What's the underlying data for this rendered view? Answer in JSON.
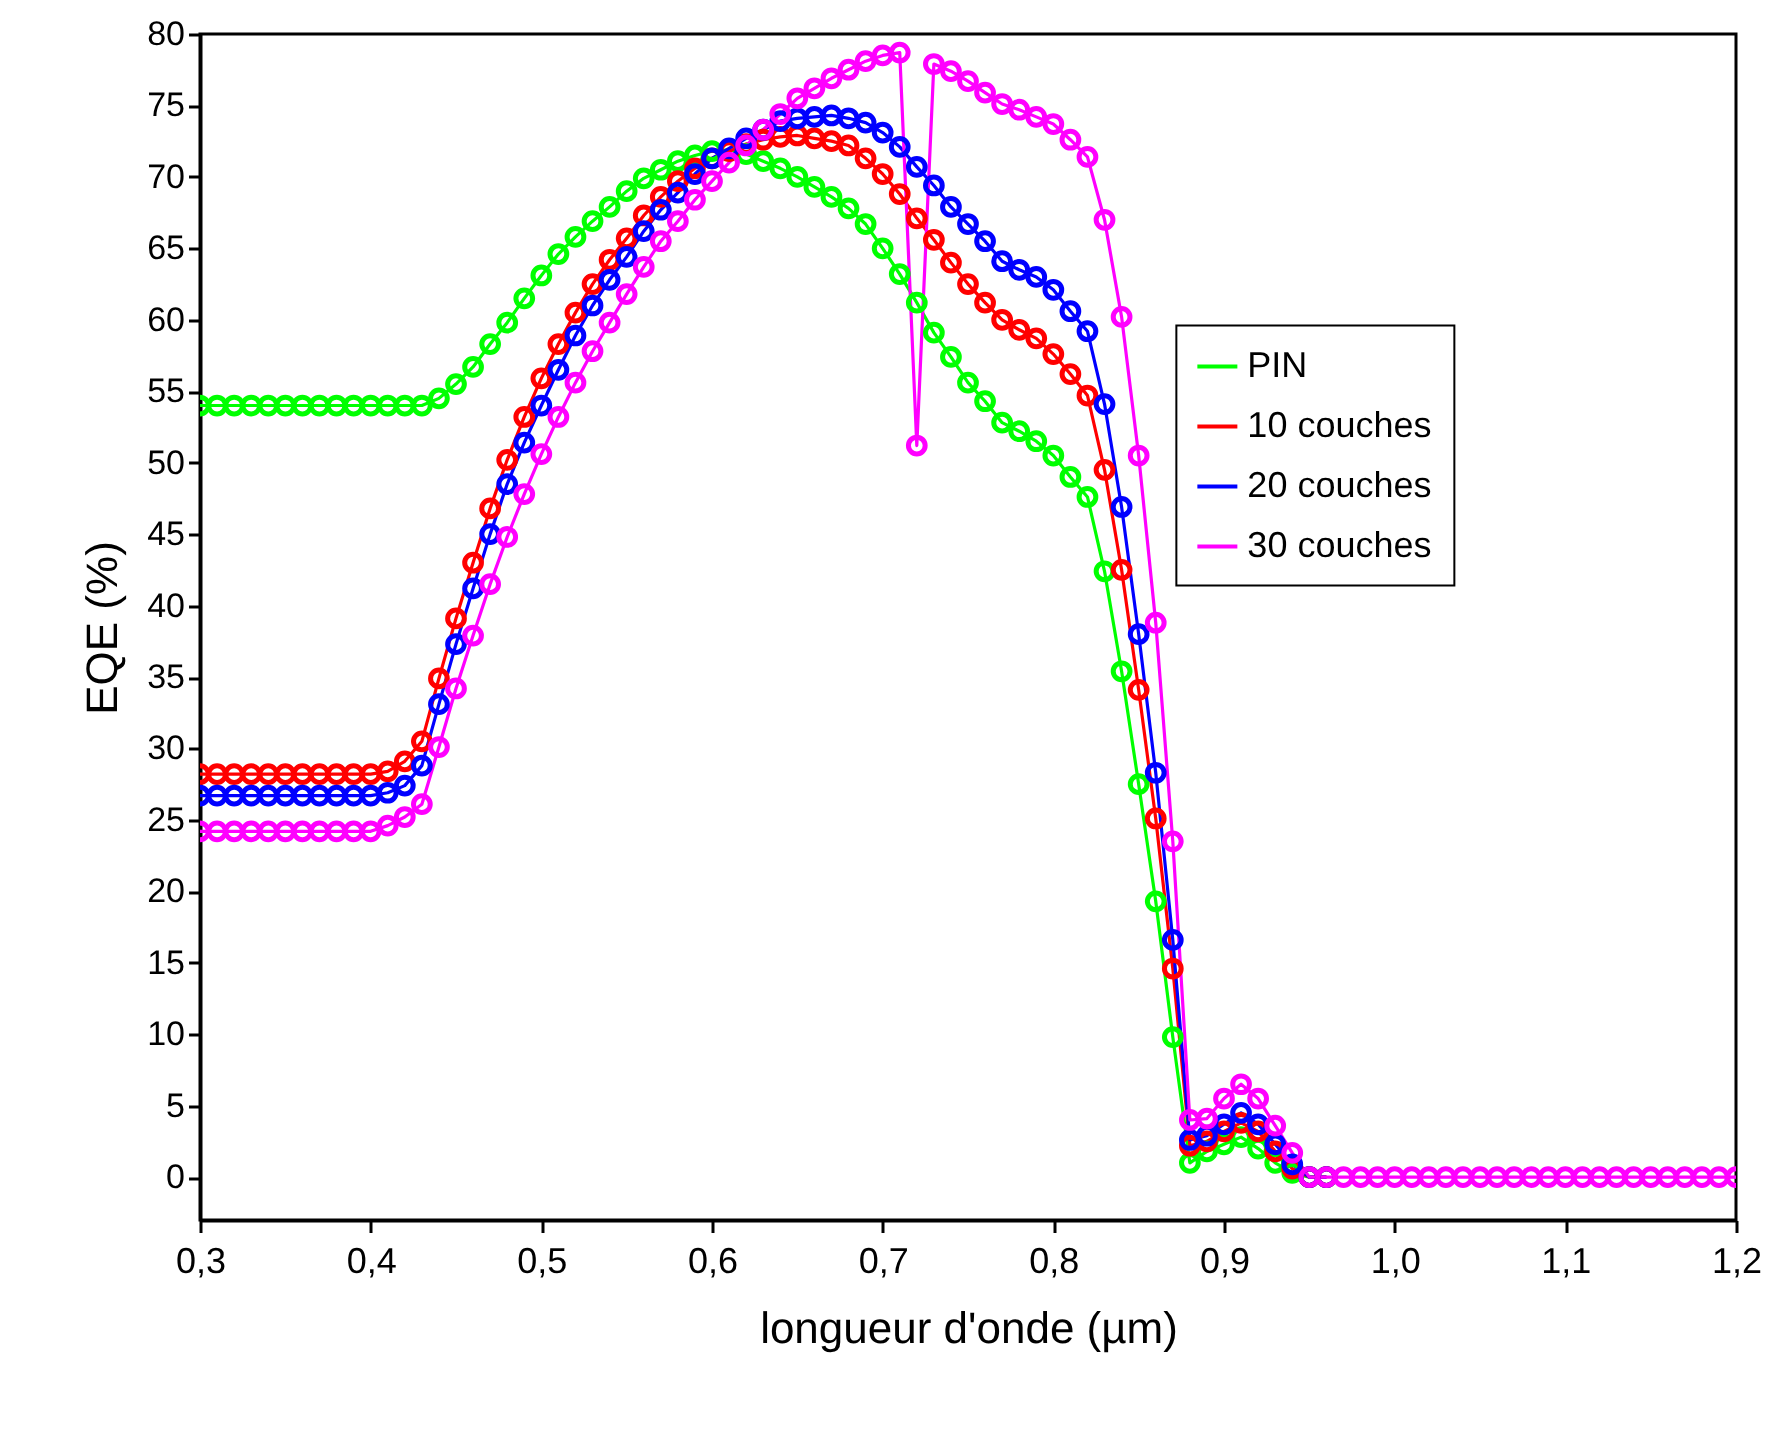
{
  "chart_data": {
    "type": "line",
    "xlabel": "longueur d'onde (µm)",
    "ylabel": "EQE (%)",
    "x": [
      0.3,
      0.31,
      0.32,
      0.33,
      0.34,
      0.35,
      0.36,
      0.37,
      0.38,
      0.39,
      0.4,
      0.41,
      0.42,
      0.43,
      0.44,
      0.45,
      0.46,
      0.47,
      0.48,
      0.49,
      0.5,
      0.51,
      0.52,
      0.53,
      0.54,
      0.55,
      0.56,
      0.57,
      0.58,
      0.59,
      0.6,
      0.61,
      0.62,
      0.63,
      0.64,
      0.65,
      0.66,
      0.67,
      0.68,
      0.69,
      0.7,
      0.71,
      0.72,
      0.73,
      0.74,
      0.75,
      0.76,
      0.77,
      0.78,
      0.79,
      0.8,
      0.81,
      0.82,
      0.83,
      0.84,
      0.85,
      0.86,
      0.87,
      0.88,
      0.89,
      0.9,
      0.91,
      0.92,
      0.93,
      0.94,
      0.95,
      0.96,
      0.97,
      0.98,
      0.99,
      1.0,
      1.01,
      1.02,
      1.03,
      1.04,
      1.05,
      1.06,
      1.07,
      1.08,
      1.09,
      1.1,
      1.11,
      1.12,
      1.13,
      1.14,
      1.15,
      1.16,
      1.17,
      1.18,
      1.19,
      1.2
    ],
    "series": [
      {
        "name": "PIN",
        "color": "#00ff00",
        "values": [
          54,
          54,
          54,
          54,
          54,
          54,
          54,
          54,
          54,
          54,
          54,
          54,
          54,
          54,
          54.5,
          55.5,
          56.7,
          58.3,
          59.8,
          61.5,
          63.1,
          64.6,
          65.8,
          66.9,
          67.9,
          69,
          69.9,
          70.5,
          71.1,
          71.5,
          71.8,
          71.9,
          71.6,
          71.1,
          70.6,
          70,
          69.3,
          68.6,
          67.8,
          66.7,
          65,
          63.2,
          61.2,
          59.1,
          57.4,
          55.6,
          54.3,
          52.8,
          52.2,
          51.5,
          50.5,
          49,
          47.6,
          42.4,
          35.4,
          27.5,
          19.3,
          9.8,
          1,
          1.8,
          2.3,
          2.8,
          2,
          1,
          0.3,
          0,
          0,
          null,
          null,
          null,
          null,
          null,
          null,
          null,
          null,
          null,
          null,
          null,
          null,
          null,
          null,
          null,
          null,
          null,
          null,
          null,
          null,
          null,
          null,
          null,
          null
        ]
      },
      {
        "name": "10 couches",
        "color": "#ff0000",
        "values": [
          28.2,
          28.2,
          28.2,
          28.2,
          28.2,
          28.2,
          28.2,
          28.2,
          28.2,
          28.2,
          28.2,
          28.4,
          29.1,
          30.5,
          34.9,
          39.1,
          43,
          46.8,
          50.2,
          53.2,
          55.9,
          58.3,
          60.5,
          62.5,
          64.2,
          65.7,
          67.3,
          68.6,
          69.7,
          70.6,
          71.3,
          71.8,
          72.3,
          72.6,
          72.8,
          72.9,
          72.7,
          72.5,
          72.2,
          71.3,
          70.2,
          68.8,
          67.1,
          65.6,
          64,
          62.5,
          61.2,
          60,
          59.3,
          58.7,
          57.6,
          56.2,
          54.7,
          49.5,
          42.5,
          34.1,
          25.1,
          14.6,
          2.2,
          2.5,
          3.2,
          3.8,
          3.2,
          1.8,
          0.6,
          0,
          0,
          null,
          null,
          null,
          null,
          null,
          null,
          null,
          null,
          null,
          null,
          null,
          null,
          null,
          null,
          null,
          null,
          null,
          null,
          null,
          null,
          null,
          null,
          null,
          null
        ]
      },
      {
        "name": "20 couches",
        "color": "#0000ff",
        "values": [
          26.7,
          26.7,
          26.7,
          26.7,
          26.7,
          26.7,
          26.7,
          26.7,
          26.7,
          26.7,
          26.7,
          26.9,
          27.4,
          28.8,
          33.1,
          37.3,
          41.2,
          45,
          48.5,
          51.4,
          54,
          56.5,
          58.9,
          61,
          62.8,
          64.4,
          66.2,
          67.7,
          68.9,
          70.2,
          71.3,
          72,
          72.7,
          73.3,
          73.9,
          74.1,
          74.2,
          74.3,
          74.1,
          73.8,
          73.1,
          72.1,
          70.7,
          69.4,
          67.9,
          66.7,
          65.5,
          64.1,
          63.5,
          63,
          62.1,
          60.6,
          59.2,
          54.1,
          46.9,
          38,
          28.3,
          16.6,
          2.6,
          2.9,
          3.7,
          4.5,
          3.7,
          2.3,
          0.9,
          0,
          0,
          null,
          null,
          null,
          null,
          null,
          null,
          null,
          null,
          null,
          null,
          null,
          null,
          null,
          null,
          null,
          null,
          null,
          null,
          null,
          null,
          null,
          null,
          null,
          null
        ]
      },
      {
        "name": "30 couches",
        "color": "#ff00ff",
        "values": [
          24.2,
          24.2,
          24.2,
          24.2,
          24.2,
          24.2,
          24.2,
          24.2,
          24.2,
          24.2,
          24.2,
          24.6,
          25.2,
          26.1,
          30.1,
          34.2,
          37.9,
          41.5,
          44.8,
          47.8,
          50.6,
          53.2,
          55.6,
          57.8,
          59.8,
          61.8,
          63.7,
          65.5,
          66.9,
          68.4,
          69.7,
          71,
          72.2,
          73.3,
          74.4,
          75.5,
          76.2,
          76.9,
          77.5,
          78.1,
          78.5,
          78.7,
          51.2,
          77.9,
          77.4,
          76.7,
          75.9,
          75.1,
          74.7,
          74.2,
          73.7,
          72.6,
          71.4,
          67,
          60.2,
          50.5,
          38.8,
          23.5,
          4,
          4.1,
          5.5,
          6.5,
          5.5,
          3.6,
          1.7,
          0,
          0,
          0,
          0,
          0,
          0,
          0,
          0,
          0,
          0,
          0,
          0,
          0,
          0,
          0,
          0,
          0,
          0,
          0,
          0,
          0,
          0,
          0,
          0,
          0,
          0
        ]
      }
    ],
    "xlim": [
      0.3,
      1.2
    ],
    "xticks": [
      {
        "value": 0.3,
        "label": "0,3"
      },
      {
        "value": 0.4,
        "label": "0,4"
      },
      {
        "value": 0.5,
        "label": "0,5"
      },
      {
        "value": 0.6,
        "label": "0,6"
      },
      {
        "value": 0.7,
        "label": "0,7"
      },
      {
        "value": 0.8,
        "label": "0,8"
      },
      {
        "value": 0.9,
        "label": "0,9"
      },
      {
        "value": 1.0,
        "label": "1,0"
      },
      {
        "value": 1.1,
        "label": "1,1"
      },
      {
        "value": 1.2,
        "label": "1,2"
      }
    ],
    "ylim": [
      -3,
      80
    ],
    "yticks": [
      0,
      5,
      10,
      15,
      20,
      25,
      30,
      35,
      40,
      45,
      50,
      55,
      60,
      65,
      70,
      75,
      80
    ],
    "grid": false,
    "legend": "right",
    "marker": "circle",
    "line_style": "solid"
  }
}
